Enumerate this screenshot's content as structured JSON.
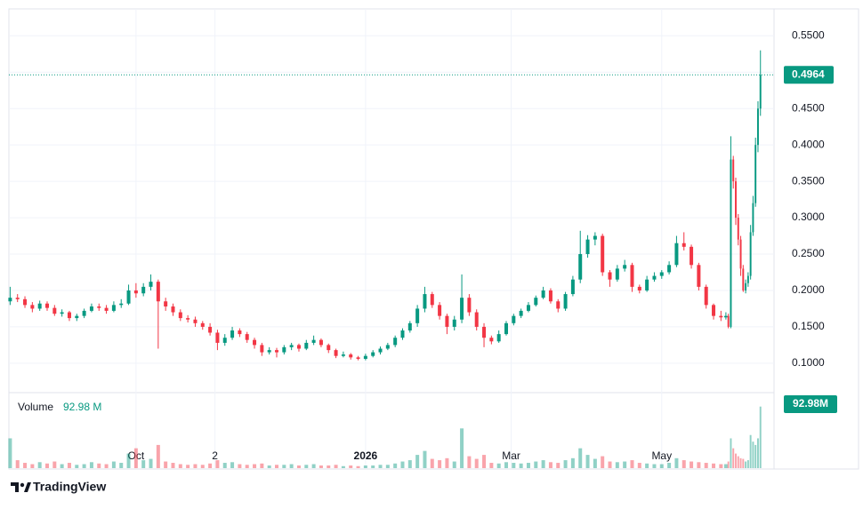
{
  "chart_data": {
    "type": "candlestick",
    "up_color": "#089981",
    "down_color": "#f23645",
    "xlim": [
      -0.5,
      309.5
    ],
    "xticks": [
      {
        "value": 51,
        "label": "Oct"
      },
      {
        "value": 83,
        "label": "2"
      },
      {
        "value": 144,
        "label": "2026"
      },
      {
        "value": 203,
        "label": "Mar"
      },
      {
        "value": 264,
        "label": "May"
      }
    ],
    "ylim": [
      0.062,
      0.587
    ],
    "yticks": [
      {
        "value": 0.1,
        "label": "0.1000"
      },
      {
        "value": 0.15,
        "label": "0.1500"
      },
      {
        "value": 0.2,
        "label": "0.2000"
      },
      {
        "value": 0.25,
        "label": "0.2500"
      },
      {
        "value": 0.3,
        "label": "0.3000"
      },
      {
        "value": 0.35,
        "label": "0.3500"
      },
      {
        "value": 0.4,
        "label": "0.4000"
      },
      {
        "value": 0.45,
        "label": "0.4500"
      },
      {
        "value": 0.5,
        "label": "0.5000"
      },
      {
        "value": 0.55,
        "label": "0.5500"
      }
    ],
    "grid": true,
    "x": [
      0,
      3,
      6,
      9,
      12,
      15,
      18,
      21,
      24,
      27,
      30,
      33,
      36,
      39,
      42,
      45,
      48,
      51,
      54,
      57,
      60,
      63,
      66,
      69,
      72,
      75,
      78,
      81,
      84,
      87,
      90,
      93,
      96,
      99,
      102,
      105,
      108,
      111,
      114,
      117,
      120,
      123,
      126,
      129,
      132,
      135,
      138,
      141,
      144,
      147,
      150,
      153,
      156,
      159,
      162,
      165,
      168,
      171,
      174,
      177,
      180,
      183,
      186,
      189,
      192,
      195,
      198,
      201,
      204,
      207,
      210,
      213,
      216,
      219,
      222,
      225,
      228,
      231,
      234,
      237,
      240,
      243,
      246,
      249,
      252,
      255,
      258,
      261,
      264,
      267,
      270,
      273,
      276,
      279,
      282,
      285,
      288,
      290,
      291,
      292,
      293,
      294,
      295,
      296,
      297,
      298,
      299,
      300,
      301,
      302,
      303,
      304
    ],
    "candles": [
      [
        0.185,
        0.205,
        0.18,
        0.19
      ],
      [
        0.19,
        0.195,
        0.184,
        0.188
      ],
      [
        0.188,
        0.192,
        0.176,
        0.18
      ],
      [
        0.18,
        0.184,
        0.17,
        0.175
      ],
      [
        0.175,
        0.186,
        0.172,
        0.182
      ],
      [
        0.182,
        0.185,
        0.172,
        0.176
      ],
      [
        0.176,
        0.18,
        0.165,
        0.168
      ],
      [
        0.168,
        0.174,
        0.164,
        0.17
      ],
      [
        0.17,
        0.172,
        0.158,
        0.162
      ],
      [
        0.162,
        0.168,
        0.158,
        0.165
      ],
      [
        0.165,
        0.175,
        0.162,
        0.172
      ],
      [
        0.172,
        0.182,
        0.17,
        0.178
      ],
      [
        0.178,
        0.182,
        0.172,
        0.176
      ],
      [
        0.176,
        0.18,
        0.168,
        0.172
      ],
      [
        0.172,
        0.185,
        0.17,
        0.18
      ],
      [
        0.18,
        0.188,
        0.176,
        0.182
      ],
      [
        0.182,
        0.208,
        0.18,
        0.2
      ],
      [
        0.2,
        0.21,
        0.19,
        0.196
      ],
      [
        0.196,
        0.21,
        0.192,
        0.205
      ],
      [
        0.205,
        0.222,
        0.2,
        0.212
      ],
      [
        0.212,
        0.215,
        0.12,
        0.185
      ],
      [
        0.185,
        0.19,
        0.172,
        0.178
      ],
      [
        0.178,
        0.182,
        0.165,
        0.17
      ],
      [
        0.17,
        0.174,
        0.158,
        0.162
      ],
      [
        0.162,
        0.166,
        0.156,
        0.16
      ],
      [
        0.16,
        0.164,
        0.15,
        0.155
      ],
      [
        0.155,
        0.158,
        0.146,
        0.15
      ],
      [
        0.15,
        0.155,
        0.138,
        0.142
      ],
      [
        0.142,
        0.146,
        0.118,
        0.128
      ],
      [
        0.128,
        0.14,
        0.124,
        0.135
      ],
      [
        0.135,
        0.15,
        0.132,
        0.145
      ],
      [
        0.145,
        0.148,
        0.136,
        0.14
      ],
      [
        0.14,
        0.143,
        0.128,
        0.132
      ],
      [
        0.132,
        0.135,
        0.12,
        0.125
      ],
      [
        0.125,
        0.128,
        0.11,
        0.115
      ],
      [
        0.115,
        0.122,
        0.112,
        0.118
      ],
      [
        0.118,
        0.121,
        0.108,
        0.115
      ],
      [
        0.115,
        0.125,
        0.112,
        0.122
      ],
      [
        0.122,
        0.128,
        0.118,
        0.125
      ],
      [
        0.125,
        0.127,
        0.116,
        0.12
      ],
      [
        0.12,
        0.132,
        0.118,
        0.128
      ],
      [
        0.128,
        0.138,
        0.125,
        0.132
      ],
      [
        0.132,
        0.134,
        0.122,
        0.125
      ],
      [
        0.125,
        0.127,
        0.114,
        0.118
      ],
      [
        0.118,
        0.12,
        0.107,
        0.11
      ],
      [
        0.11,
        0.116,
        0.108,
        0.112
      ],
      [
        0.112,
        0.114,
        0.105,
        0.108
      ],
      [
        0.108,
        0.11,
        0.104,
        0.106
      ],
      [
        0.106,
        0.113,
        0.104,
        0.11
      ],
      [
        0.11,
        0.118,
        0.108,
        0.115
      ],
      [
        0.115,
        0.123,
        0.112,
        0.12
      ],
      [
        0.12,
        0.128,
        0.118,
        0.125
      ],
      [
        0.125,
        0.138,
        0.122,
        0.135
      ],
      [
        0.135,
        0.148,
        0.132,
        0.145
      ],
      [
        0.145,
        0.158,
        0.142,
        0.155
      ],
      [
        0.155,
        0.18,
        0.15,
        0.175
      ],
      [
        0.175,
        0.205,
        0.17,
        0.195
      ],
      [
        0.195,
        0.198,
        0.176,
        0.18
      ],
      [
        0.18,
        0.184,
        0.16,
        0.165
      ],
      [
        0.165,
        0.168,
        0.14,
        0.15
      ],
      [
        0.15,
        0.165,
        0.145,
        0.16
      ],
      [
        0.16,
        0.222,
        0.155,
        0.19
      ],
      [
        0.19,
        0.195,
        0.165,
        0.17
      ],
      [
        0.17,
        0.174,
        0.145,
        0.15
      ],
      [
        0.15,
        0.155,
        0.122,
        0.135
      ],
      [
        0.135,
        0.138,
        0.126,
        0.13
      ],
      [
        0.13,
        0.145,
        0.128,
        0.14
      ],
      [
        0.14,
        0.158,
        0.138,
        0.155
      ],
      [
        0.155,
        0.168,
        0.152,
        0.165
      ],
      [
        0.165,
        0.175,
        0.162,
        0.172
      ],
      [
        0.172,
        0.184,
        0.17,
        0.18
      ],
      [
        0.18,
        0.193,
        0.178,
        0.19
      ],
      [
        0.19,
        0.205,
        0.188,
        0.2
      ],
      [
        0.2,
        0.203,
        0.182,
        0.185
      ],
      [
        0.185,
        0.188,
        0.17,
        0.175
      ],
      [
        0.175,
        0.198,
        0.172,
        0.195
      ],
      [
        0.195,
        0.22,
        0.192,
        0.215
      ],
      [
        0.215,
        0.282,
        0.21,
        0.25
      ],
      [
        0.25,
        0.276,
        0.245,
        0.27
      ],
      [
        0.27,
        0.28,
        0.262,
        0.275
      ],
      [
        0.275,
        0.278,
        0.22,
        0.225
      ],
      [
        0.225,
        0.228,
        0.205,
        0.215
      ],
      [
        0.215,
        0.235,
        0.212,
        0.23
      ],
      [
        0.23,
        0.242,
        0.226,
        0.235
      ],
      [
        0.235,
        0.238,
        0.198,
        0.205
      ],
      [
        0.205,
        0.208,
        0.196,
        0.2
      ],
      [
        0.2,
        0.22,
        0.198,
        0.215
      ],
      [
        0.215,
        0.225,
        0.212,
        0.22
      ],
      [
        0.22,
        0.228,
        0.216,
        0.225
      ],
      [
        0.225,
        0.24,
        0.222,
        0.235
      ],
      [
        0.235,
        0.275,
        0.232,
        0.265
      ],
      [
        0.265,
        0.28,
        0.255,
        0.26
      ],
      [
        0.26,
        0.263,
        0.23,
        0.235
      ],
      [
        0.235,
        0.238,
        0.2,
        0.205
      ],
      [
        0.205,
        0.208,
        0.175,
        0.18
      ],
      [
        0.18,
        0.182,
        0.16,
        0.165
      ],
      [
        0.165,
        0.172,
        0.158,
        0.163
      ],
      [
        0.163,
        0.17,
        0.16,
        0.165
      ],
      [
        0.165,
        0.168,
        0.148,
        0.15
      ],
      [
        0.15,
        0.412,
        0.148,
        0.38
      ],
      [
        0.38,
        0.385,
        0.34,
        0.35
      ],
      [
        0.35,
        0.355,
        0.29,
        0.3
      ],
      [
        0.3,
        0.305,
        0.262,
        0.27
      ],
      [
        0.27,
        0.275,
        0.22,
        0.23
      ],
      [
        0.23,
        0.235,
        0.198,
        0.2
      ],
      [
        0.2,
        0.215,
        0.196,
        0.21
      ],
      [
        0.21,
        0.225,
        0.205,
        0.22
      ],
      [
        0.22,
        0.29,
        0.215,
        0.28
      ],
      [
        0.28,
        0.33,
        0.275,
        0.32
      ],
      [
        0.32,
        0.41,
        0.315,
        0.4
      ],
      [
        0.4,
        0.46,
        0.39,
        0.45
      ],
      [
        0.45,
        0.53,
        0.44,
        0.4964
      ]
    ],
    "volume_name": "Volume",
    "volume_value_labels": {
      "legend": "92.98 M",
      "tag": "92.98M"
    },
    "volume_ylim": [
      0,
      110
    ],
    "volume": [
      45,
      12,
      8,
      6,
      9,
      7,
      10,
      6,
      8,
      5,
      6,
      9,
      7,
      6,
      10,
      8,
      22,
      30,
      12,
      14,
      35,
      10,
      8,
      6,
      5,
      6,
      5,
      7,
      12,
      8,
      9,
      6,
      5,
      6,
      7,
      4,
      5,
      5,
      6,
      4,
      5,
      6,
      4,
      4,
      5,
      3,
      4,
      3,
      4,
      4,
      5,
      5,
      7,
      10,
      12,
      20,
      26,
      14,
      12,
      15,
      10,
      60,
      18,
      14,
      20,
      8,
      7,
      9,
      8,
      7,
      8,
      10,
      12,
      9,
      8,
      12,
      15,
      30,
      20,
      14,
      18,
      10,
      9,
      10,
      12,
      8,
      7,
      6,
      6,
      8,
      15,
      12,
      10,
      9,
      8,
      7,
      6,
      6,
      10,
      45,
      30,
      22,
      18,
      15,
      14,
      10,
      12,
      50,
      40,
      35,
      45,
      92.98
    ],
    "brand": "TradingView"
  }
}
